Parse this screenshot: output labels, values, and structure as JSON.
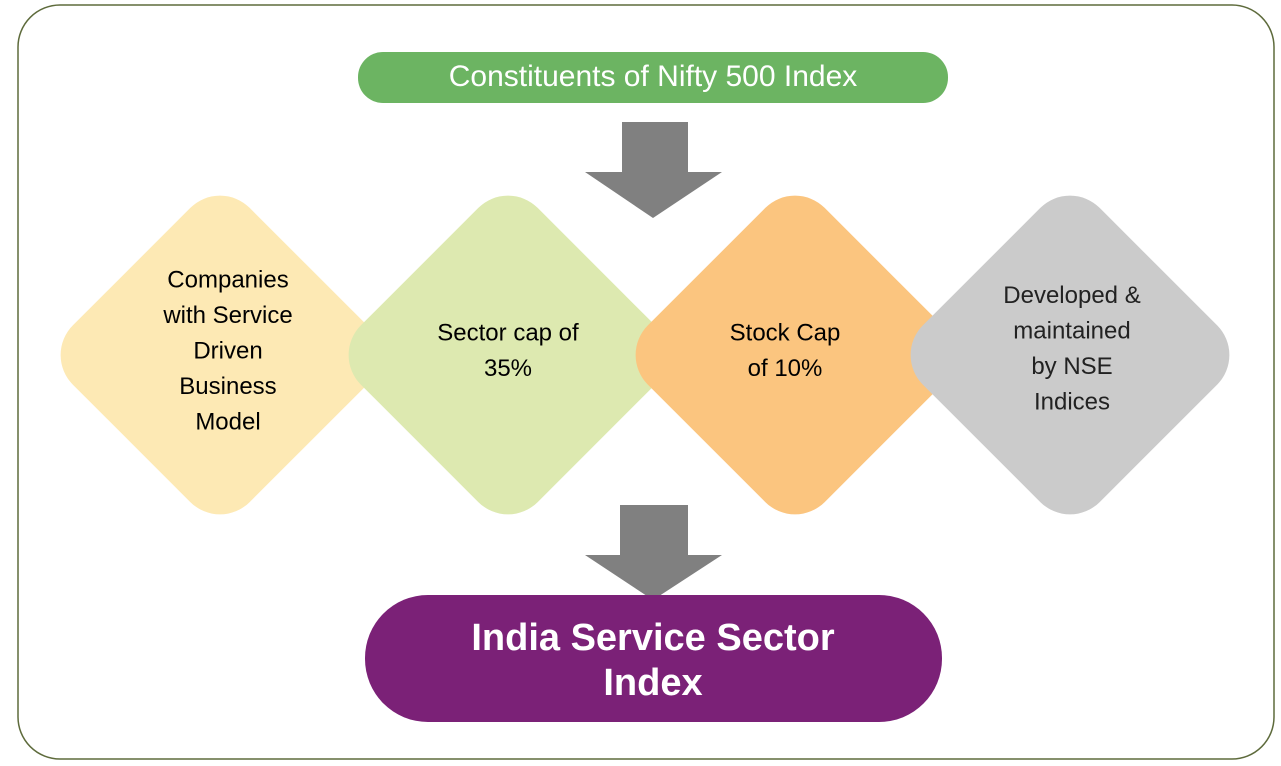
{
  "header": {
    "title": "Constituents of Nifty 500 Index"
  },
  "nodes": [
    {
      "lines": [
        "Companies",
        "with Service",
        "Driven",
        "Business",
        "Model"
      ]
    },
    {
      "lines": [
        "Sector cap of",
        "35%"
      ]
    },
    {
      "lines": [
        "Stock Cap",
        "of 10%"
      ]
    },
    {
      "lines": [
        "Developed &",
        "maintained",
        "by NSE",
        "Indices"
      ]
    }
  ],
  "result": {
    "lines": [
      "India Service Sector",
      "Index"
    ]
  }
}
